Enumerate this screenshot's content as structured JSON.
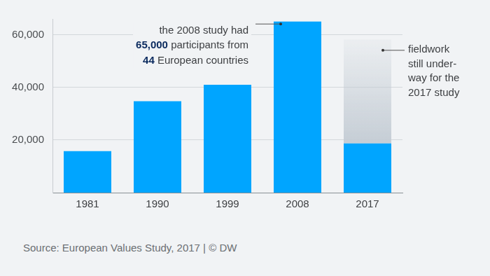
{
  "chart_data": {
    "type": "bar",
    "categories": [
      "1981",
      "1990",
      "1999",
      "2008",
      "2017"
    ],
    "series": [
      {
        "values": [
          15800,
          34700,
          41000,
          65000,
          18700
        ],
        "color": "#00a5ff"
      },
      {
        "values": [
          null,
          null,
          null,
          null,
          39500
        ],
        "color": "#c5cdd5"
      }
    ],
    "stacked": true,
    "ylim": [
      0,
      66000
    ],
    "yticks": [
      {
        "value": 20000,
        "label": "20,000"
      },
      {
        "value": 40000,
        "label": "40,000"
      },
      {
        "value": 60000,
        "label": "60,000"
      }
    ],
    "grid": true,
    "annotations": [
      {
        "category": "2008",
        "lines": [
          "the 2008 study had",
          "65,000 participants from",
          "44 European countries"
        ],
        "bold": [
          "65,000",
          "44"
        ]
      },
      {
        "category": "2017",
        "lines": [
          "fieldwork",
          "still under-",
          "way for the",
          "2017 study"
        ]
      }
    ],
    "source": "Source: European Values Study, 2017 | © DW"
  }
}
